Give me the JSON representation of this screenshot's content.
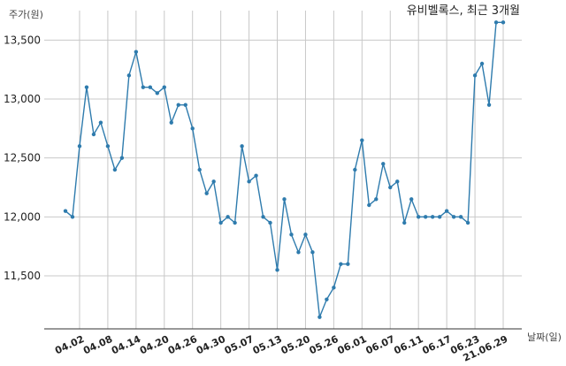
{
  "chart_data": {
    "type": "line",
    "title": "유비벨록스, 최근 3개월",
    "ylabel": "주가(원)",
    "xlabel": "날짜(일)",
    "ylim": [
      11050,
      13750
    ],
    "yticks": [
      11500,
      12000,
      12500,
      13000,
      13500
    ],
    "ytick_labels": [
      "11,500",
      "12,000",
      "12,500",
      "13,000",
      "13,500"
    ],
    "grid": true,
    "line_color": "#2e7bad",
    "x_tick_indices": [
      2,
      6,
      10,
      14,
      18,
      22,
      26,
      30,
      34,
      38,
      42,
      46,
      50,
      54,
      58,
      62
    ],
    "x_tick_labels": [
      "04.02",
      "04.08",
      "04.14",
      "04.20",
      "04.26",
      "04.30",
      "05.07",
      "05.13",
      "05.20",
      "05.26",
      "06.01",
      "06.07",
      "06.11",
      "06.17",
      "06.23",
      "21.06.29"
    ],
    "values": [
      12050,
      12000,
      12600,
      13100,
      12700,
      12800,
      12600,
      12400,
      12500,
      13200,
      13400,
      13100,
      13100,
      13050,
      13100,
      12800,
      12950,
      12950,
      12750,
      12400,
      12200,
      12300,
      11950,
      12000,
      11950,
      12600,
      12300,
      12350,
      12000,
      11950,
      11550,
      12150,
      11850,
      11700,
      11850,
      11700,
      11150,
      11300,
      11400,
      11600,
      11600,
      12400,
      12650,
      12100,
      12150,
      12450,
      12250,
      12300,
      11950,
      12150,
      12000,
      12000,
      12000,
      12000,
      12050,
      12000,
      12000,
      11950,
      13200,
      13300,
      12950,
      13650,
      13650
    ]
  }
}
